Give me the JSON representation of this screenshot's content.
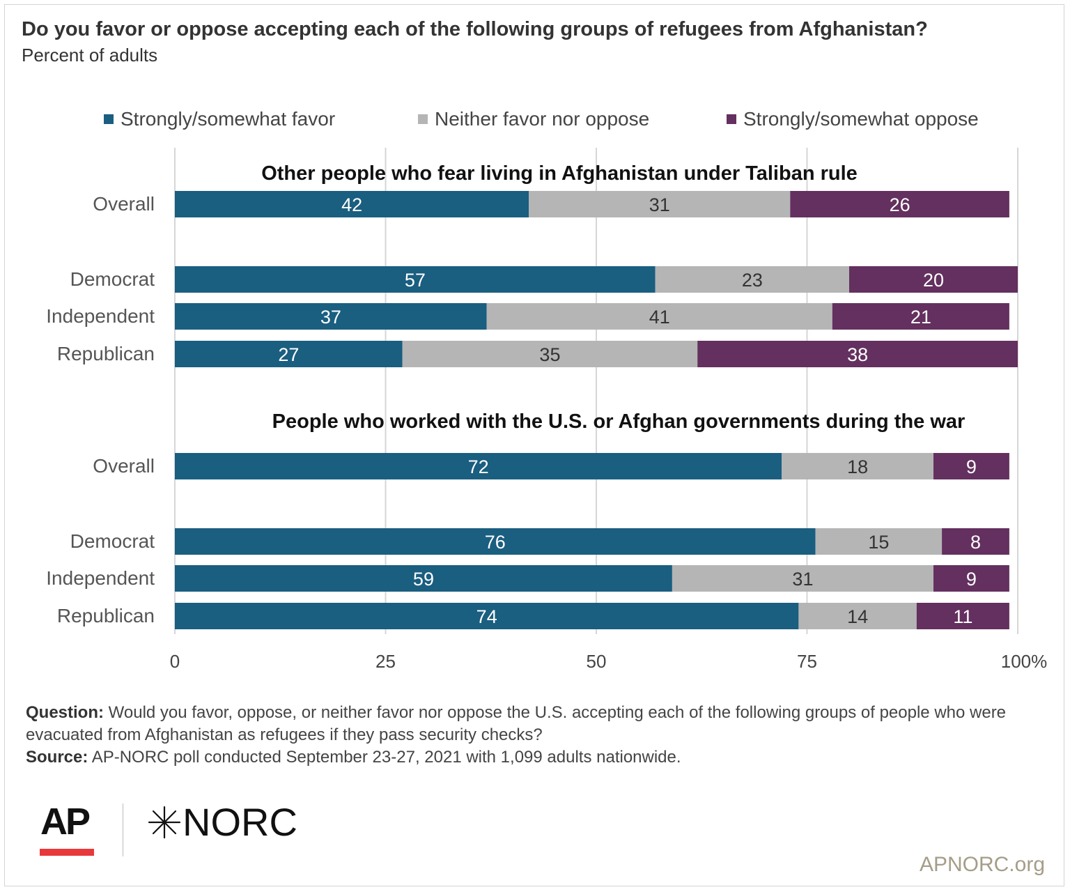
{
  "title": "Do you favor or oppose accepting each of the following groups of refugees from Afghanistan?",
  "subtitle": "Percent of adults",
  "legend": [
    {
      "label": "Strongly/somewhat favor",
      "color": "#1a5e80"
    },
    {
      "label": "Neither favor nor oppose",
      "color": "#b5b5b5"
    },
    {
      "label": "Strongly/somewhat oppose",
      "color": "#63305f"
    }
  ],
  "chart_data": {
    "type": "bar",
    "orientation": "horizontal",
    "stacked": true,
    "xlim": [
      0,
      100
    ],
    "xticks": [
      "0",
      "25",
      "50",
      "75",
      "100%"
    ],
    "grid": true,
    "legend_position": "top",
    "groups": [
      {
        "title": "Other people who fear living in Afghanistan under Taliban rule",
        "categories": [
          "Overall",
          "Democrat",
          "Independent",
          "Republican"
        ],
        "series": [
          {
            "name": "Strongly/somewhat favor",
            "values": [
              42,
              57,
              37,
              27
            ]
          },
          {
            "name": "Neither favor nor oppose",
            "values": [
              31,
              23,
              41,
              35
            ]
          },
          {
            "name": "Strongly/somewhat oppose",
            "values": [
              26,
              20,
              21,
              38
            ]
          }
        ]
      },
      {
        "title": "People who worked with the U.S. or Afghan governments during the war",
        "categories": [
          "Overall",
          "Democrat",
          "Independent",
          "Republican"
        ],
        "series": [
          {
            "name": "Strongly/somewhat favor",
            "values": [
              72,
              76,
              59,
              74
            ]
          },
          {
            "name": "Neither favor nor oppose",
            "values": [
              18,
              15,
              31,
              14
            ]
          },
          {
            "name": "Strongly/somewhat oppose",
            "values": [
              9,
              8,
              9,
              11
            ]
          }
        ]
      }
    ]
  },
  "footer": {
    "question_label": "Question:",
    "question_text": "Would you favor, oppose, or neither favor nor oppose the U.S. accepting each of the following groups of people who were evacuated from Afghanistan as refugees if they pass security checks?",
    "source_label": "Source:",
    "source_text": "AP-NORC poll conducted September 23-27, 2021 with 1,099 adults nationwide."
  },
  "logos": {
    "ap": "AP",
    "norc": "NORC"
  },
  "site": "APNORC.org"
}
